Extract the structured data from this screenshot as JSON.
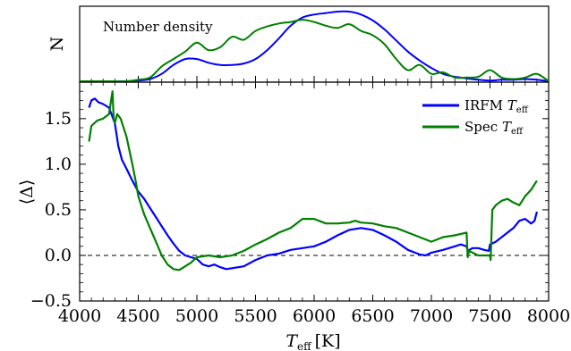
{
  "chart_data": [
    {
      "type": "line",
      "title": "",
      "annotation": "Number density",
      "xlabel": "",
      "ylabel": "N",
      "xlim": [
        4000,
        8000
      ],
      "ylim": [
        0,
        1
      ],
      "grid": false,
      "series": [
        {
          "name": "IRFM",
          "color": "#0000ff",
          "x": [
            4000,
            4100,
            4200,
            4300,
            4400,
            4500,
            4600,
            4700,
            4800,
            4900,
            5000,
            5100,
            5200,
            5300,
            5400,
            5500,
            5600,
            5700,
            5800,
            5900,
            6000,
            6100,
            6200,
            6300,
            6400,
            6500,
            6600,
            6700,
            6800,
            6900,
            7000,
            7100,
            7200,
            7300,
            7400,
            7500,
            7600,
            7700,
            7800,
            7900,
            8000
          ],
          "values": [
            0.0,
            0.0,
            0.0,
            0.0,
            0.0,
            0.01,
            0.03,
            0.1,
            0.22,
            0.3,
            0.3,
            0.25,
            0.22,
            0.22,
            0.24,
            0.3,
            0.42,
            0.58,
            0.75,
            0.86,
            0.9,
            0.92,
            0.94,
            0.94,
            0.9,
            0.82,
            0.7,
            0.55,
            0.4,
            0.28,
            0.18,
            0.1,
            0.06,
            0.04,
            0.02,
            0.01,
            0.02,
            0.02,
            0.03,
            0.02,
            0.0
          ]
        },
        {
          "name": "Spec",
          "color": "#008000",
          "x": [
            4000,
            4100,
            4200,
            4300,
            4400,
            4500,
            4600,
            4700,
            4800,
            4900,
            5000,
            5100,
            5200,
            5300,
            5400,
            5500,
            5600,
            5700,
            5800,
            5900,
            6000,
            6100,
            6200,
            6300,
            6400,
            6500,
            6600,
            6700,
            6800,
            6900,
            7000,
            7100,
            7200,
            7300,
            7400,
            7500,
            7600,
            7700,
            7800,
            7900,
            8000
          ],
          "values": [
            0.0,
            0.0,
            0.0,
            0.0,
            0.0,
            0.02,
            0.05,
            0.2,
            0.3,
            0.4,
            0.52,
            0.42,
            0.46,
            0.6,
            0.56,
            0.68,
            0.74,
            0.78,
            0.8,
            0.83,
            0.8,
            0.75,
            0.72,
            0.77,
            0.68,
            0.62,
            0.5,
            0.3,
            0.15,
            0.22,
            0.1,
            0.12,
            0.05,
            0.05,
            0.06,
            0.15,
            0.05,
            0.03,
            0.05,
            0.1,
            0.0
          ]
        }
      ]
    },
    {
      "type": "line",
      "title": "",
      "xlabel": "T_eff [K]",
      "xlabel_main": "T",
      "xlabel_sub": "eff",
      "xlabel_unit": "[K]",
      "ylabel": "⟨Δ⟩",
      "xlim": [
        4000,
        8000
      ],
      "ylim": [
        -0.5,
        1.9
      ],
      "xticks": [
        "4000",
        "4500",
        "5000",
        "5500",
        "6000",
        "6500",
        "7000",
        "7500",
        "8000"
      ],
      "yticks": [
        "−0.5",
        "0.0",
        "0.5",
        "1.0",
        "1.5"
      ],
      "grid": false,
      "legend_position": "top-right",
      "reference_line": {
        "y": 0.0,
        "style": "dashed"
      },
      "series": [
        {
          "name": "IRFM T_eff",
          "legend_main": "IRFM ",
          "legend_italic": "T",
          "legend_sub": "eff",
          "color": "#0000ff",
          "x": [
            4080,
            4100,
            4130,
            4160,
            4200,
            4250,
            4300,
            4330,
            4360,
            4400,
            4450,
            4500,
            4550,
            4600,
            4650,
            4700,
            4750,
            4800,
            4850,
            4900,
            4950,
            5000,
            5050,
            5100,
            5150,
            5200,
            5250,
            5300,
            5400,
            5500,
            5600,
            5700,
            5800,
            5900,
            6000,
            6100,
            6200,
            6300,
            6400,
            6500,
            6600,
            6700,
            6800,
            6900,
            6950,
            7000,
            7100,
            7200,
            7250,
            7300,
            7310,
            7350,
            7400,
            7450,
            7490,
            7500,
            7550,
            7600,
            7650,
            7700,
            7750,
            7800,
            7850,
            7880,
            7900
          ],
          "values": [
            1.62,
            1.7,
            1.72,
            1.68,
            1.66,
            1.62,
            1.45,
            1.2,
            1.05,
            0.95,
            0.82,
            0.7,
            0.62,
            0.52,
            0.42,
            0.32,
            0.22,
            0.13,
            0.05,
            0.0,
            -0.02,
            -0.04,
            -0.1,
            -0.12,
            -0.1,
            -0.13,
            -0.15,
            -0.14,
            -0.12,
            -0.05,
            0.0,
            0.02,
            0.06,
            0.08,
            0.1,
            0.15,
            0.22,
            0.28,
            0.3,
            0.28,
            0.22,
            0.15,
            0.06,
            0.01,
            0.0,
            0.03,
            0.06,
            0.1,
            0.12,
            0.1,
            0.05,
            0.08,
            0.08,
            0.06,
            0.05,
            0.12,
            0.15,
            0.2,
            0.25,
            0.3,
            0.38,
            0.4,
            0.35,
            0.38,
            0.48
          ]
        },
        {
          "name": "Spec T_eff",
          "legend_main": "Spec ",
          "legend_italic": "T",
          "legend_sub": "eff",
          "color": "#008000",
          "x": [
            4080,
            4100,
            4150,
            4200,
            4250,
            4280,
            4290,
            4300,
            4320,
            4350,
            4400,
            4450,
            4480,
            4500,
            4550,
            4600,
            4650,
            4700,
            4750,
            4800,
            4850,
            4900,
            4950,
            5000,
            5100,
            5200,
            5300,
            5400,
            5500,
            5600,
            5700,
            5800,
            5850,
            5900,
            6000,
            6100,
            6200,
            6300,
            6350,
            6400,
            6500,
            6600,
            6700,
            6800,
            6900,
            7000,
            7100,
            7200,
            7300,
            7310,
            7320,
            7400,
            7500,
            7505,
            7520,
            7550,
            7600,
            7650,
            7700,
            7750,
            7800,
            7850,
            7900
          ],
          "values": [
            1.25,
            1.42,
            1.48,
            1.5,
            1.55,
            1.8,
            1.5,
            1.45,
            1.55,
            1.5,
            1.3,
            1.0,
            0.8,
            0.65,
            0.45,
            0.3,
            0.15,
            0.0,
            -0.1,
            -0.15,
            -0.16,
            -0.12,
            -0.08,
            -0.02,
            0.0,
            -0.02,
            0.0,
            0.05,
            0.12,
            0.18,
            0.25,
            0.3,
            0.35,
            0.4,
            0.4,
            0.35,
            0.35,
            0.36,
            0.38,
            0.36,
            0.35,
            0.32,
            0.3,
            0.25,
            0.2,
            0.15,
            0.2,
            0.22,
            0.25,
            -0.02,
            0.05,
            0.0,
            0.0,
            -0.05,
            0.5,
            0.55,
            0.6,
            0.62,
            0.58,
            0.55,
            0.65,
            0.72,
            0.82
          ]
        }
      ]
    }
  ]
}
